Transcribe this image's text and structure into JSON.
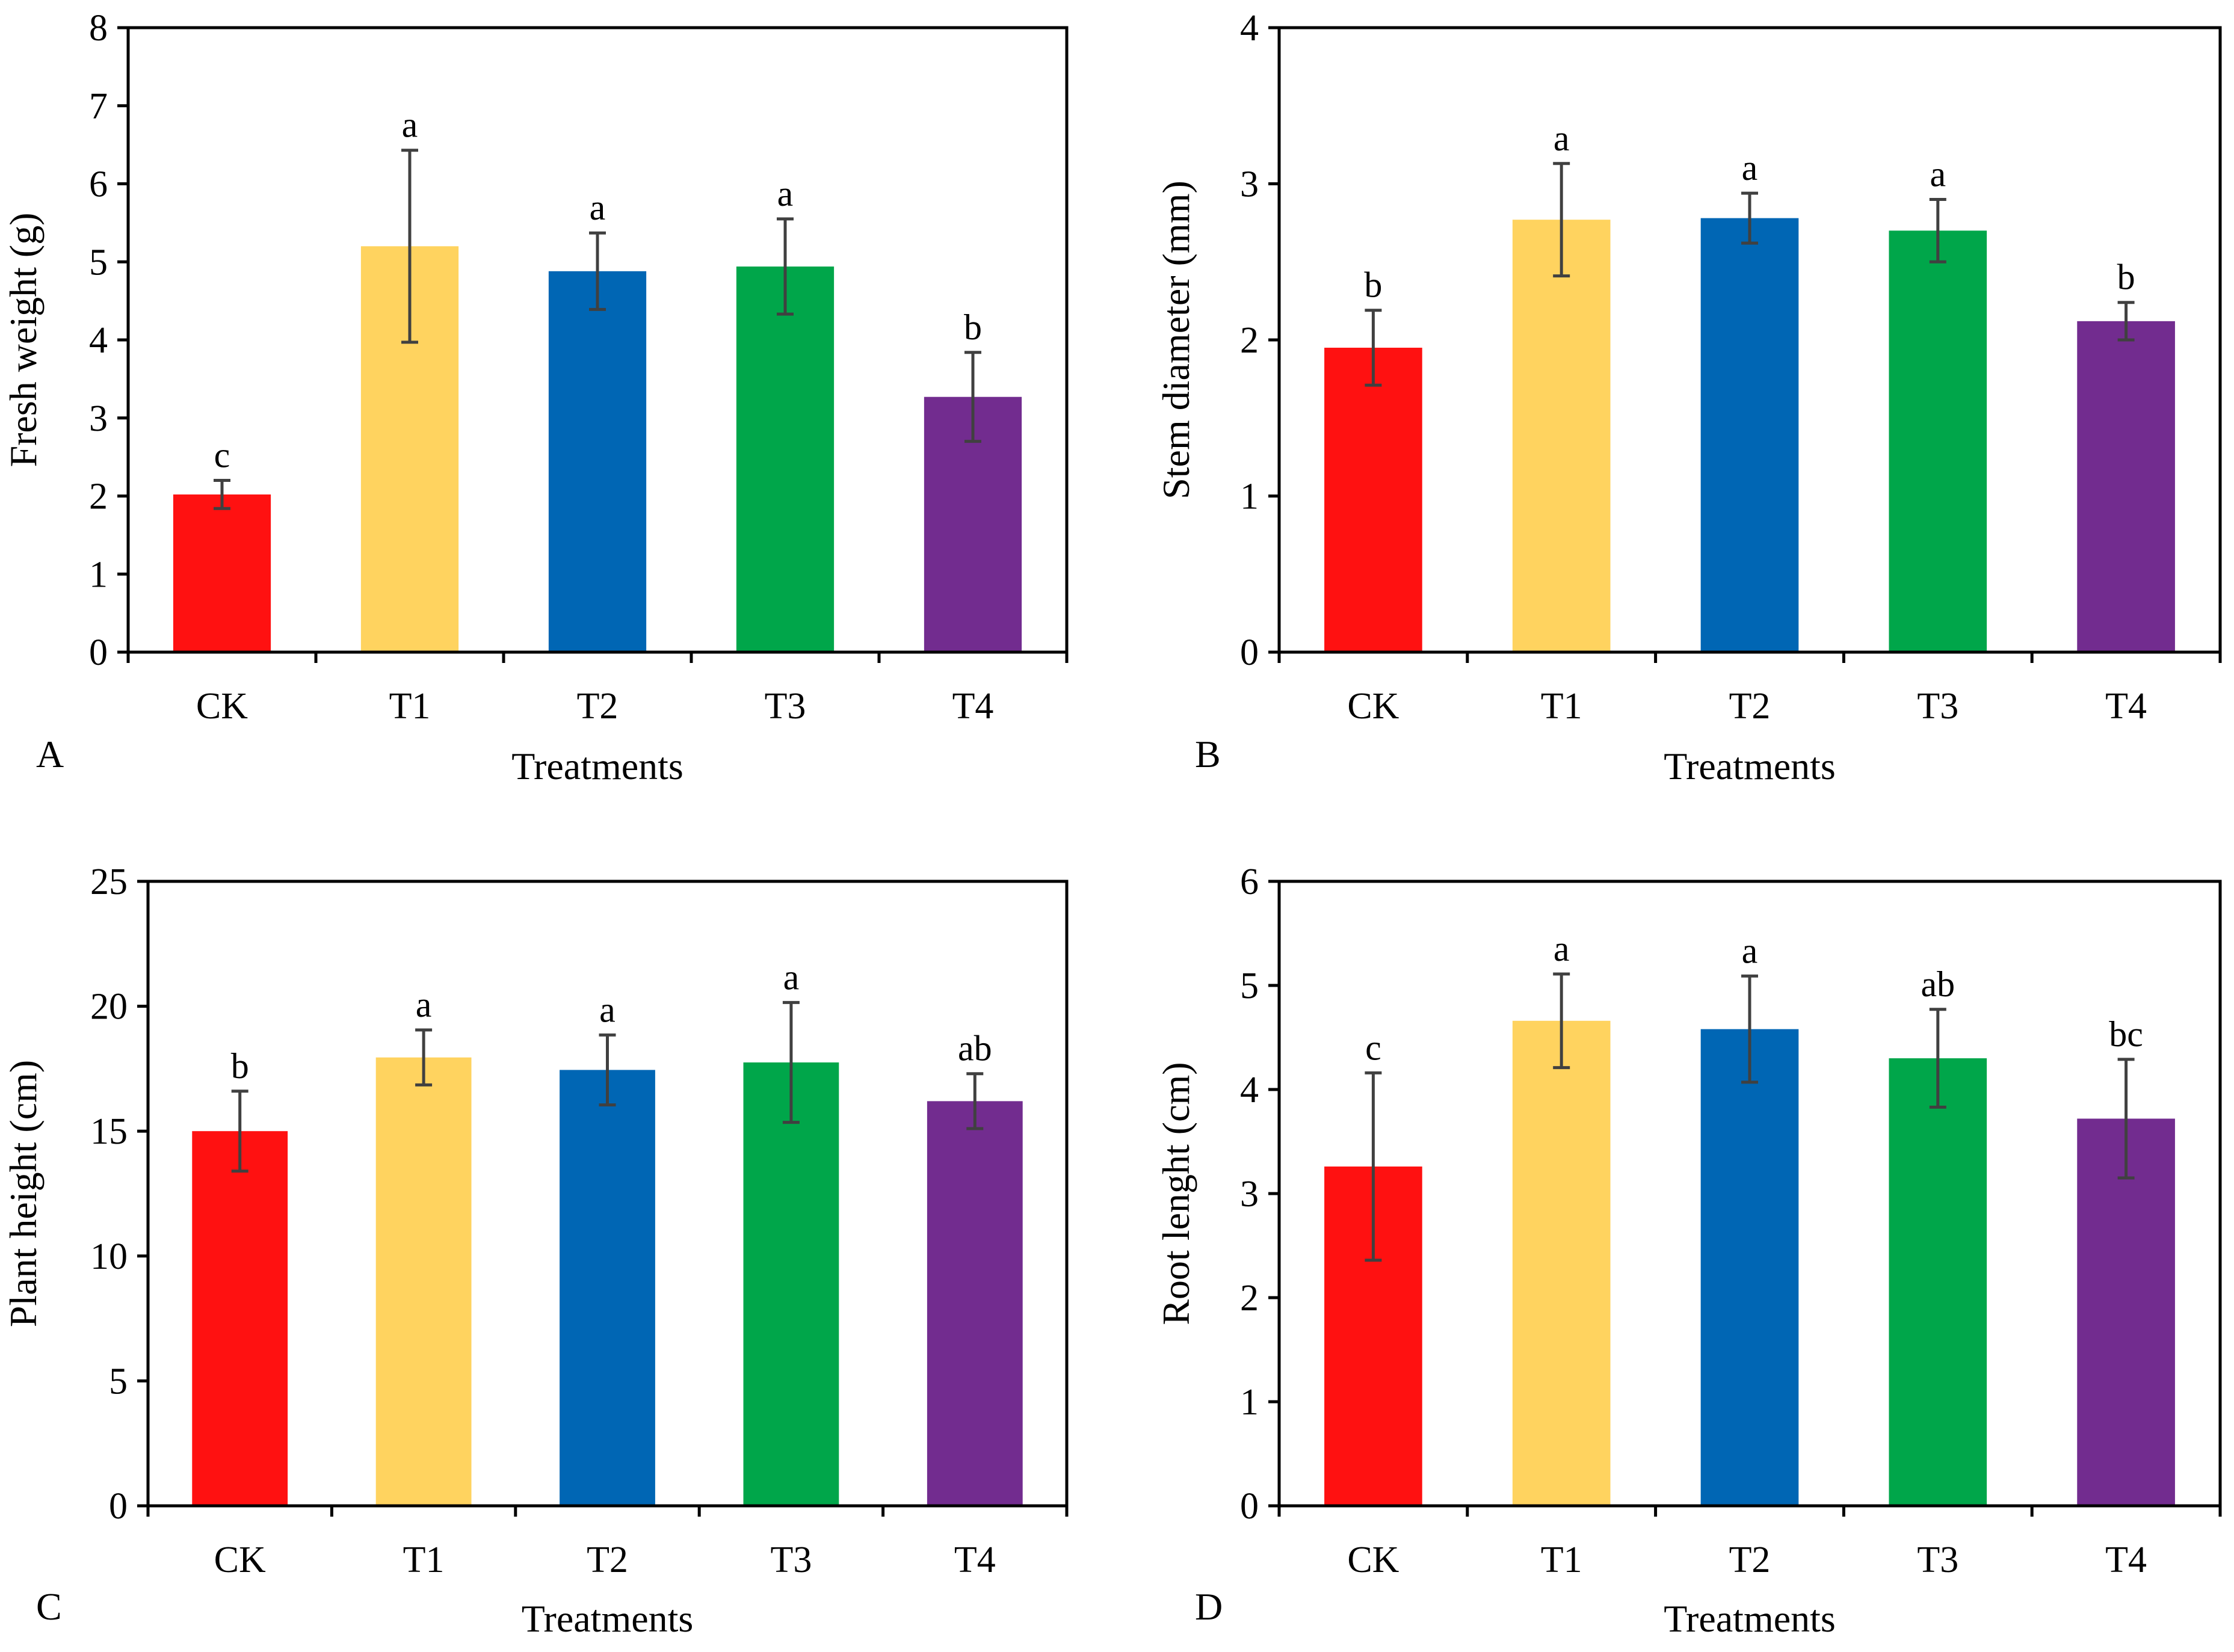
{
  "chart_data": [
    {
      "panel_label": "A",
      "type": "bar",
      "categories": [
        "CK",
        "T1",
        "T2",
        "T3",
        "T4"
      ],
      "values": [
        2.02,
        5.2,
        4.88,
        4.94,
        3.27
      ],
      "errors": [
        0.18,
        1.23,
        0.49,
        0.61,
        0.57
      ],
      "significance": [
        "c",
        "a",
        "a",
        "a",
        "b"
      ],
      "xlabel": "Treatments",
      "ylabel": "Fresh weight (g)",
      "ylim": [
        0,
        8
      ],
      "yticks": [
        0,
        1,
        2,
        3,
        4,
        5,
        6,
        7,
        8
      ],
      "grid": false
    },
    {
      "panel_label": "B",
      "type": "bar",
      "categories": [
        "CK",
        "T1",
        "T2",
        "T3",
        "T4"
      ],
      "values": [
        1.95,
        2.77,
        2.78,
        2.7,
        2.12
      ],
      "errors": [
        0.24,
        0.36,
        0.16,
        0.2,
        0.12
      ],
      "significance": [
        "b",
        "a",
        "a",
        "a",
        "b"
      ],
      "xlabel": "Treatments",
      "ylabel": "Stem diameter (mm)",
      "ylim": [
        0,
        4
      ],
      "yticks": [
        0,
        1,
        2,
        3,
        4
      ],
      "grid": false
    },
    {
      "panel_label": "C",
      "type": "bar",
      "categories": [
        "CK",
        "T1",
        "T2",
        "T3",
        "T4"
      ],
      "values": [
        15.0,
        17.95,
        17.45,
        17.75,
        16.2
      ],
      "errors": [
        1.6,
        1.1,
        1.4,
        2.4,
        1.1
      ],
      "significance": [
        "b",
        "a",
        "a",
        "a",
        "ab"
      ],
      "xlabel": "Treatments",
      "ylabel": "Plant height (cm)",
      "ylim": [
        0,
        25
      ],
      "yticks": [
        0,
        5,
        10,
        15,
        20,
        25
      ],
      "grid": false
    },
    {
      "panel_label": "D",
      "type": "bar",
      "categories": [
        "CK",
        "T1",
        "T2",
        "T3",
        "T4"
      ],
      "values": [
        3.26,
        4.66,
        4.58,
        4.3,
        3.72
      ],
      "errors": [
        0.9,
        0.45,
        0.51,
        0.47,
        0.57
      ],
      "significance": [
        "c",
        "a",
        "a",
        "ab",
        "bc"
      ],
      "xlabel": "Treatments",
      "ylabel": "Root lenght (cm)",
      "ylim": [
        0,
        6
      ],
      "yticks": [
        0,
        1,
        2,
        3,
        4,
        5,
        6
      ],
      "grid": false
    }
  ],
  "colors": {
    "bars": [
      "#FF1111",
      "#FFD35F",
      "#0066B4",
      "#00A64A",
      "#722C8F"
    ],
    "axis": "#000000",
    "error_bar": "#404040"
  }
}
